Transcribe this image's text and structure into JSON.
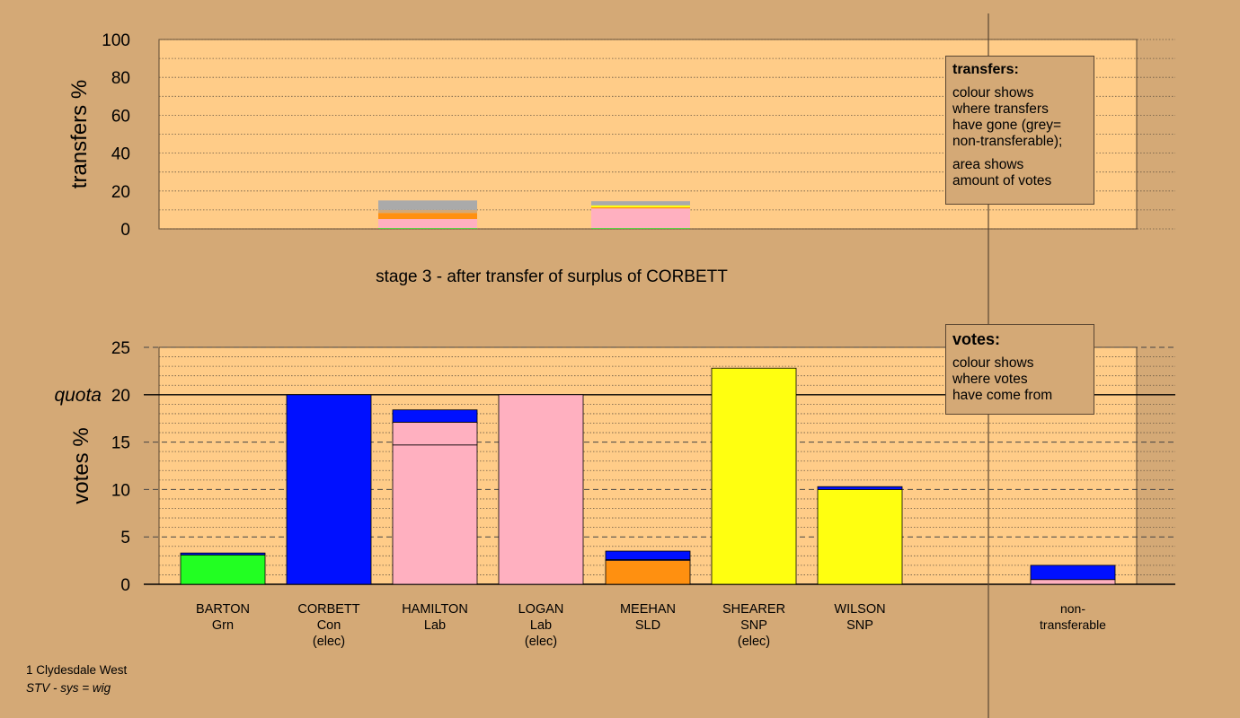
{
  "chart_data": [
    {
      "type": "bar",
      "stacked": true,
      "ylabel": "transfers %",
      "ylim": [
        0,
        100
      ],
      "yticks": [
        0,
        20,
        40,
        60,
        80,
        100
      ],
      "categories": [
        "BARTON",
        "CORBETT",
        "HAMILTON",
        "LOGAN",
        "MEEHAN",
        "SHEARER",
        "WILSON"
      ],
      "bars": [
        {
          "category": "HAMILTON",
          "segments": [
            {
              "color": "#22dd22",
              "value": 0.4
            },
            {
              "color": "#ffb0c0",
              "value": 4.8
            },
            {
              "color": "#ff9010",
              "value": 3.2
            },
            {
              "color": "#d4a976",
              "value": 1.6
            },
            {
              "color": "#aaaaaa",
              "value": 5.0
            }
          ]
        },
        {
          "category": "MEEHAN",
          "segments": [
            {
              "color": "#22dd22",
              "value": 0.4
            },
            {
              "color": "#ffb0c0",
              "value": 10.4
            },
            {
              "color": "#ff9010",
              "value": 0.6
            },
            {
              "color": "#ffff10",
              "value": 1.0
            },
            {
              "color": "#aaaaaa",
              "value": 2.2
            }
          ]
        }
      ],
      "grid": true
    },
    {
      "type": "bar",
      "stacked": true,
      "title": "stage 3 - after transfer of surplus of CORBETT",
      "ylabel": "votes %",
      "ylim": [
        0,
        25
      ],
      "yticks": [
        0,
        5,
        10,
        15,
        20,
        25
      ],
      "quota": 20,
      "quota_label": "quota",
      "grid": true,
      "candidates": [
        {
          "name": "BARTON",
          "party": "Grn",
          "status": "",
          "segments": [
            {
              "color": "#22ff22",
              "value": 3.1
            },
            {
              "color": "#0010ff",
              "value": 0.2
            }
          ]
        },
        {
          "name": "CORBETT",
          "party": "Con",
          "status": "(elec)",
          "segments": [
            {
              "color": "#0010ff",
              "value": 20.0
            }
          ]
        },
        {
          "name": "HAMILTON",
          "party": "Lab",
          "status": "",
          "segments": [
            {
              "color": "#ffb0c0",
              "value": 14.7
            },
            {
              "color": "#ffb0c0",
              "value": 2.4
            },
            {
              "color": "#0010ff",
              "value": 1.3
            }
          ]
        },
        {
          "name": "LOGAN",
          "party": "Lab",
          "status": "(elec)",
          "segments": [
            {
              "color": "#ffb0c0",
              "value": 20.0
            }
          ]
        },
        {
          "name": "MEEHAN",
          "party": "SLD",
          "status": "",
          "segments": [
            {
              "color": "#ff9010",
              "value": 2.5
            },
            {
              "color": "#ffb0c0",
              "value": 0.1
            },
            {
              "color": "#0010ff",
              "value": 0.9
            }
          ]
        },
        {
          "name": "SHEARER",
          "party": "SNP",
          "status": "(elec)",
          "segments": [
            {
              "color": "#ffff10",
              "value": 22.8
            }
          ]
        },
        {
          "name": "WILSON",
          "party": "SNP",
          "status": "",
          "segments": [
            {
              "color": "#ffff10",
              "value": 10.0
            },
            {
              "color": "#0010ff",
              "value": 0.3
            }
          ]
        },
        {
          "name": "non-",
          "party": "transferable",
          "status": "",
          "segments": [
            {
              "color": "#ffb0c0",
              "value": 0.5
            },
            {
              "color": "#0010ff",
              "value": 1.5
            }
          ]
        }
      ]
    }
  ],
  "legends": {
    "transfers": {
      "title": "transfers:",
      "text1": "colour shows\nwhere transfers\nhave gone (grey=\nnon-transferable);",
      "text2": "area shows\namount of votes"
    },
    "votes": {
      "title": "votes:",
      "text1": "colour shows\nwhere votes\nhave come from"
    }
  },
  "footnotes": {
    "line1": "1 Clydesdale West",
    "line2": "STV - sys = wig"
  },
  "colors": {
    "background": "#d4a976",
    "plot_area": "#ffcc88",
    "blue": "#0010ff",
    "pink": "#ffb0c0",
    "yellow": "#ffff10",
    "green": "#22ff22",
    "orange": "#ff9010",
    "grey": "#aaaaaa"
  }
}
